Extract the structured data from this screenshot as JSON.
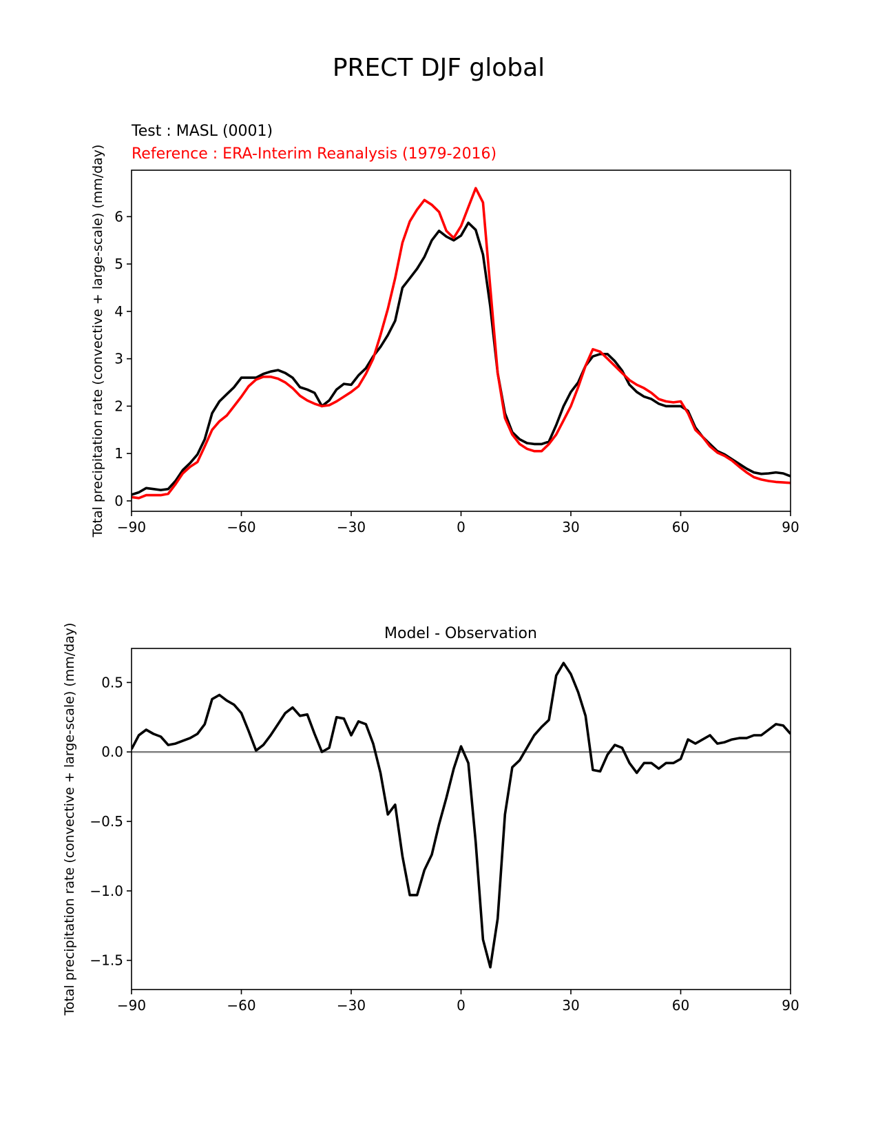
{
  "figure": {
    "title": "PRECT DJF global"
  },
  "chart_data": [
    {
      "type": "line",
      "test_label": "Test : MASL (0001)",
      "reference_label": "Reference : ERA-Interim Reanalysis (1979-2016)",
      "xlabel": "",
      "ylabel": "Total precipitation rate (convective + large-scale) (mm/day)",
      "xlim": [
        -90,
        90
      ],
      "ylim": [
        -0.22,
        6.98
      ],
      "xticks": [
        -90,
        -60,
        -30,
        0,
        30,
        60,
        90
      ],
      "xtick_labels": [
        "−90",
        "−60",
        "−30",
        "0",
        "30",
        "60",
        "90"
      ],
      "yticks": [
        0,
        1,
        2,
        3,
        4,
        5,
        6
      ],
      "ytick_labels": [
        "0",
        "1",
        "2",
        "3",
        "4",
        "5",
        "6"
      ],
      "grid": false,
      "series": [
        {
          "color": "#000000",
          "x": [
            -90,
            -88,
            -86,
            -84,
            -82,
            -80,
            -78,
            -76,
            -74,
            -72,
            -70,
            -68,
            -66,
            -64,
            -62,
            -60,
            -58,
            -56,
            -54,
            -52,
            -50,
            -48,
            -46,
            -44,
            -42,
            -40,
            -38,
            -36,
            -34,
            -32,
            -30,
            -28,
            -26,
            -24,
            -22,
            -20,
            -18,
            -16,
            -14,
            -12,
            -10,
            -8,
            -6,
            -4,
            -2,
            0,
            2,
            4,
            6,
            8,
            10,
            12,
            14,
            16,
            18,
            20,
            22,
            24,
            26,
            28,
            30,
            32,
            34,
            36,
            38,
            40,
            42,
            44,
            46,
            48,
            50,
            52,
            54,
            56,
            58,
            60,
            62,
            64,
            66,
            68,
            70,
            72,
            74,
            76,
            78,
            80,
            82,
            84,
            86,
            88,
            90
          ],
          "values": [
            0.13,
            0.18,
            0.27,
            0.25,
            0.23,
            0.25,
            0.42,
            0.65,
            0.8,
            0.98,
            1.3,
            1.85,
            2.1,
            2.25,
            2.4,
            2.6,
            2.6,
            2.6,
            2.68,
            2.73,
            2.76,
            2.7,
            2.6,
            2.4,
            2.35,
            2.28,
            2.0,
            2.12,
            2.35,
            2.47,
            2.45,
            2.65,
            2.8,
            3.05,
            3.25,
            3.5,
            3.8,
            4.5,
            4.7,
            4.9,
            5.15,
            5.5,
            5.7,
            5.58,
            5.5,
            5.6,
            5.87,
            5.72,
            5.2,
            4.1,
            2.7,
            1.85,
            1.45,
            1.3,
            1.22,
            1.2,
            1.2,
            1.25,
            1.6,
            2.0,
            2.3,
            2.5,
            2.85,
            3.05,
            3.1,
            3.1,
            2.95,
            2.75,
            2.45,
            2.3,
            2.2,
            2.15,
            2.05,
            2.0,
            2.0,
            2.0,
            1.9,
            1.55,
            1.35,
            1.2,
            1.05,
            0.98,
            0.88,
            0.78,
            0.68,
            0.6,
            0.57,
            0.58,
            0.6,
            0.58,
            0.52
          ]
        },
        {
          "color": "#ff0000",
          "x": [
            -90,
            -88,
            -86,
            -84,
            -82,
            -80,
            -78,
            -76,
            -74,
            -72,
            -70,
            -68,
            -66,
            -64,
            -62,
            -60,
            -58,
            -56,
            -54,
            -52,
            -50,
            -48,
            -46,
            -44,
            -42,
            -40,
            -38,
            -36,
            -34,
            -32,
            -30,
            -28,
            -26,
            -24,
            -22,
            -20,
            -18,
            -16,
            -14,
            -12,
            -10,
            -8,
            -6,
            -4,
            -2,
            0,
            2,
            4,
            6,
            8,
            10,
            12,
            14,
            16,
            18,
            20,
            22,
            24,
            26,
            28,
            30,
            32,
            34,
            36,
            38,
            40,
            42,
            44,
            46,
            48,
            50,
            52,
            54,
            56,
            58,
            60,
            62,
            64,
            66,
            68,
            70,
            72,
            74,
            76,
            78,
            80,
            82,
            84,
            86,
            88,
            90
          ],
          "values": [
            0.08,
            0.06,
            0.12,
            0.12,
            0.12,
            0.15,
            0.35,
            0.58,
            0.72,
            0.82,
            1.15,
            1.5,
            1.68,
            1.8,
            2.0,
            2.2,
            2.42,
            2.56,
            2.62,
            2.62,
            2.58,
            2.5,
            2.38,
            2.22,
            2.12,
            2.05,
            2.0,
            2.02,
            2.1,
            2.2,
            2.3,
            2.42,
            2.68,
            3.0,
            3.5,
            4.05,
            4.7,
            5.45,
            5.9,
            6.15,
            6.35,
            6.25,
            6.1,
            5.7,
            5.55,
            5.8,
            6.2,
            6.6,
            6.3,
            4.5,
            2.7,
            1.75,
            1.4,
            1.2,
            1.1,
            1.05,
            1.05,
            1.2,
            1.4,
            1.7,
            2.0,
            2.4,
            2.85,
            3.2,
            3.15,
            3.0,
            2.85,
            2.7,
            2.55,
            2.45,
            2.38,
            2.28,
            2.15,
            2.1,
            2.08,
            2.1,
            1.85,
            1.5,
            1.35,
            1.15,
            1.02,
            0.95,
            0.85,
            0.72,
            0.6,
            0.5,
            0.45,
            0.42,
            0.4,
            0.39,
            0.38
          ]
        }
      ]
    },
    {
      "type": "line",
      "title": "Model - Observation",
      "xlabel": "",
      "ylabel": "Total precipitation rate (convective + large-scale) (mm/day)",
      "xlim": [
        -90,
        90
      ],
      "ylim": [
        -1.71,
        0.745
      ],
      "xticks": [
        -90,
        -60,
        -30,
        0,
        30,
        60,
        90
      ],
      "xtick_labels": [
        "−90",
        "−60",
        "−30",
        "0",
        "30",
        "60",
        "90"
      ],
      "yticks": [
        -1.5,
        -1.0,
        -0.5,
        0.0,
        0.5
      ],
      "ytick_labels": [
        "−1.5",
        "−1.0",
        "−0.5",
        "0.0",
        "0.5"
      ],
      "grid": false,
      "zero_line_color": "#808080",
      "series": [
        {
          "color": "#000000",
          "x": [
            -90,
            -88,
            -86,
            -84,
            -82,
            -80,
            -78,
            -76,
            -74,
            -72,
            -70,
            -68,
            -66,
            -64,
            -62,
            -60,
            -58,
            -56,
            -54,
            -52,
            -50,
            -48,
            -46,
            -44,
            -42,
            -40,
            -38,
            -36,
            -34,
            -32,
            -30,
            -28,
            -26,
            -24,
            -22,
            -20,
            -18,
            -16,
            -14,
            -12,
            -10,
            -8,
            -6,
            -4,
            -2,
            0,
            2,
            4,
            6,
            8,
            10,
            12,
            14,
            16,
            18,
            20,
            22,
            24,
            26,
            28,
            30,
            32,
            34,
            36,
            38,
            40,
            42,
            44,
            46,
            48,
            50,
            52,
            54,
            56,
            58,
            60,
            62,
            64,
            66,
            68,
            70,
            72,
            74,
            76,
            78,
            80,
            82,
            84,
            86,
            88,
            90
          ],
          "values": [
            0.02,
            0.12,
            0.16,
            0.13,
            0.11,
            0.05,
            0.06,
            0.08,
            0.1,
            0.13,
            0.2,
            0.38,
            0.41,
            0.37,
            0.34,
            0.28,
            0.15,
            0.01,
            0.05,
            0.12,
            0.2,
            0.28,
            0.32,
            0.26,
            0.27,
            0.13,
            0.0,
            0.03,
            0.25,
            0.24,
            0.12,
            0.22,
            0.2,
            0.06,
            -0.15,
            -0.45,
            -0.38,
            -0.75,
            -1.03,
            -1.03,
            -0.85,
            -0.74,
            -0.52,
            -0.33,
            -0.12,
            0.04,
            -0.08,
            -0.65,
            -1.35,
            -1.55,
            -1.2,
            -0.45,
            -0.11,
            -0.06,
            0.03,
            0.12,
            0.18,
            0.23,
            0.55,
            0.64,
            0.56,
            0.43,
            0.26,
            -0.13,
            -0.14,
            -0.02,
            0.05,
            0.03,
            -0.08,
            -0.15,
            -0.08,
            -0.08,
            -0.12,
            -0.08,
            -0.08,
            -0.05,
            0.09,
            0.06,
            0.09,
            0.12,
            0.06,
            0.07,
            0.09,
            0.1,
            0.1,
            0.12,
            0.12,
            0.16,
            0.2,
            0.19,
            0.13
          ]
        }
      ]
    }
  ]
}
